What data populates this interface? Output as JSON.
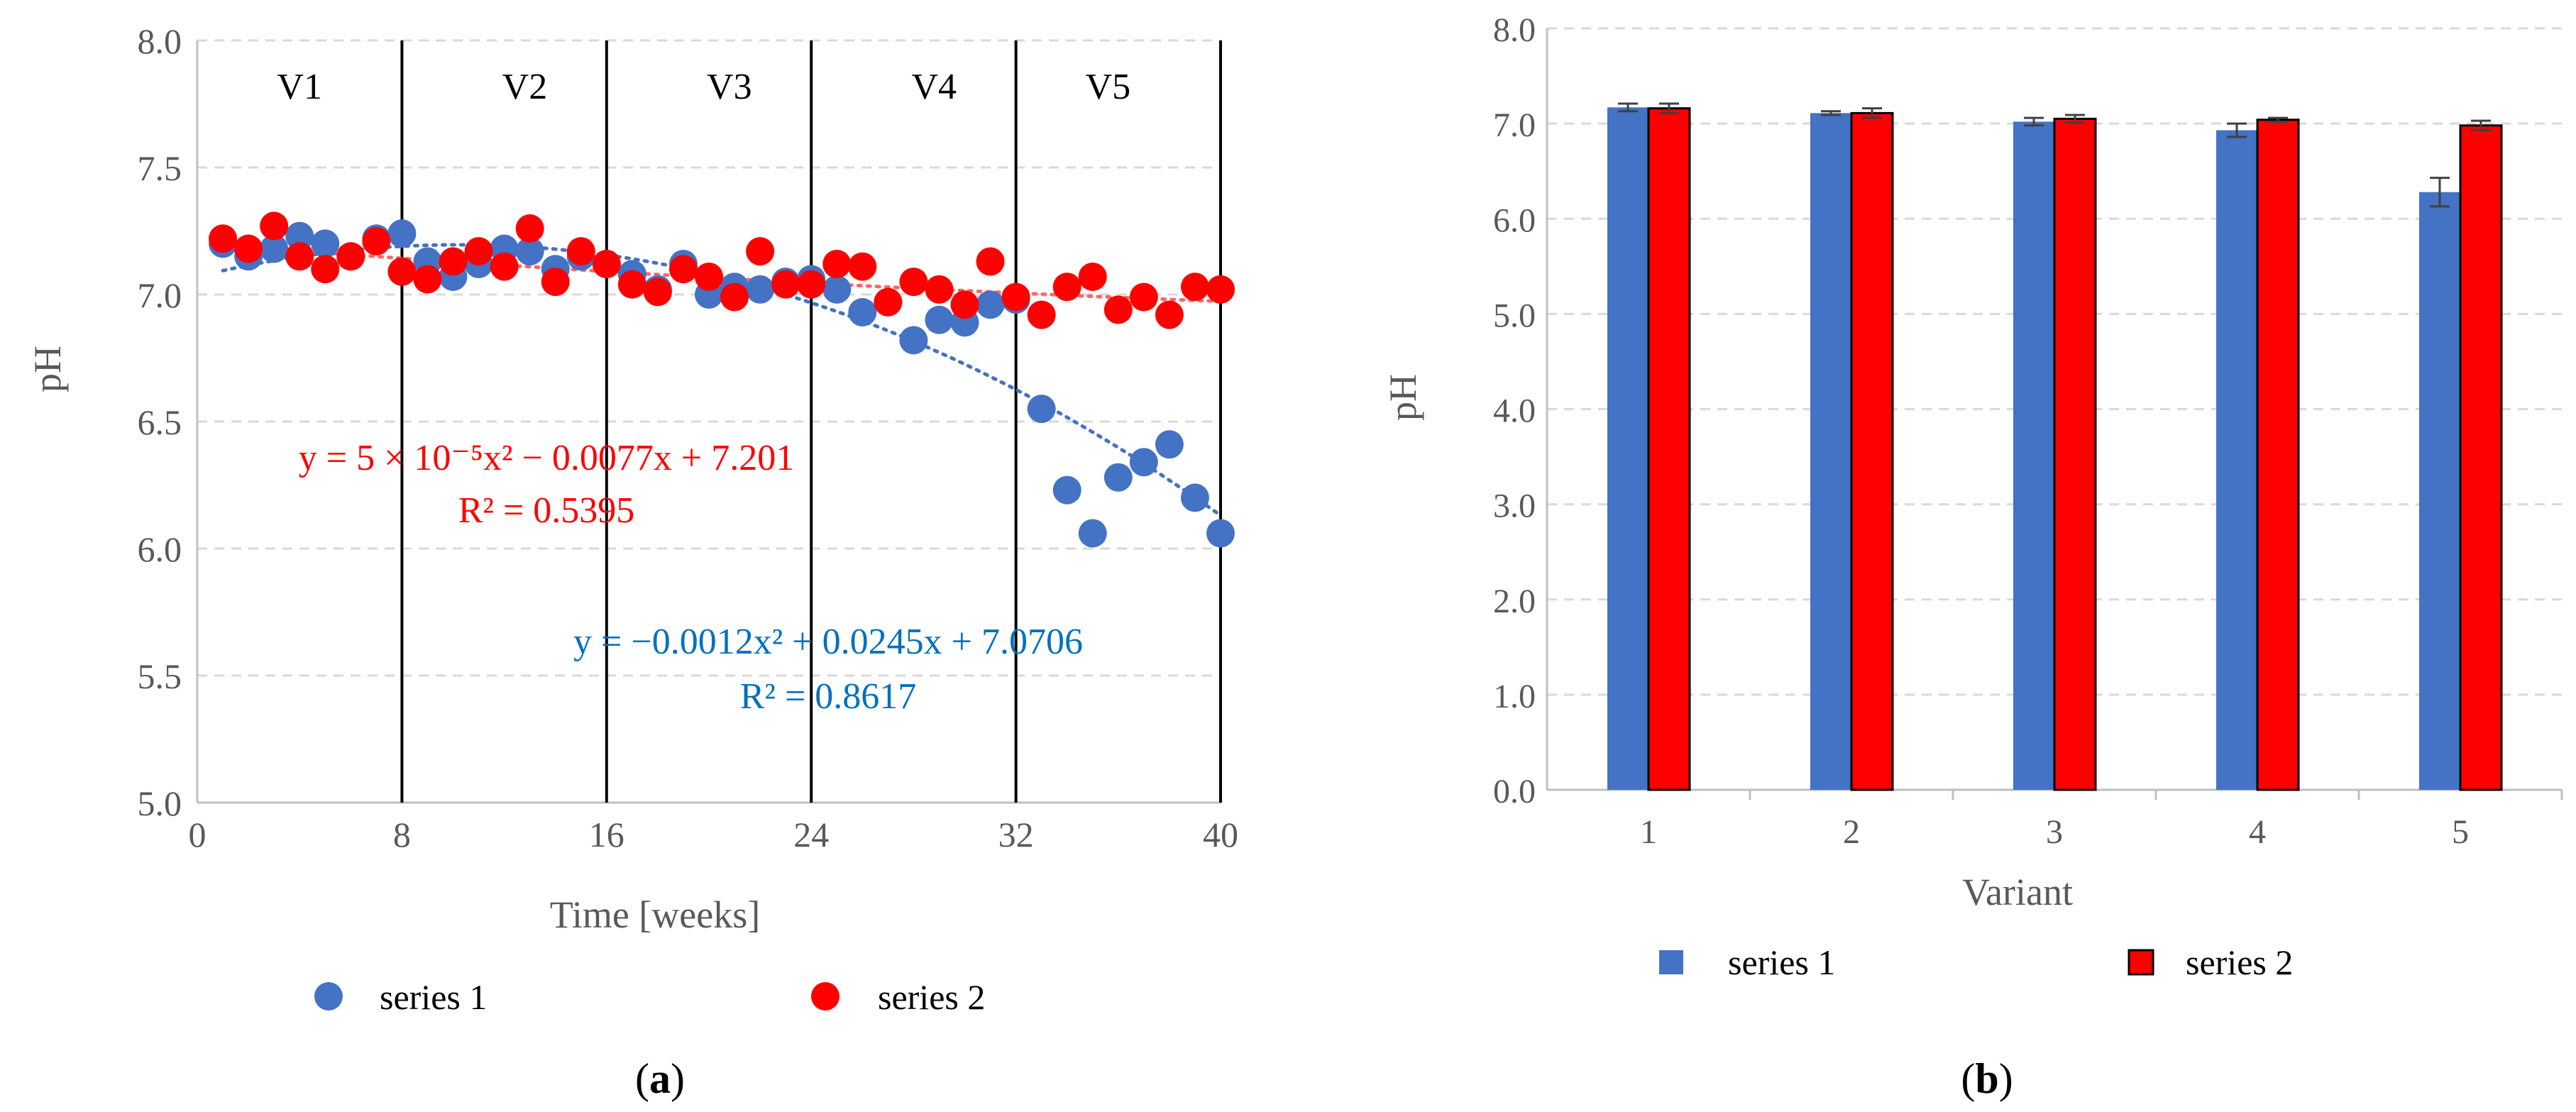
{
  "colors": {
    "series1": "#4472C4",
    "series2": "#FF0000",
    "trend1": "#4472C4",
    "trend2": "#FF6666",
    "eq1": "#0070C0",
    "eq2": "#FF0000",
    "axis_text": "#595959",
    "grid": "#D9D9D9"
  },
  "chart_data": [
    {
      "type": "scatter",
      "panel_label": "a",
      "xlabel": "Time [weeks]",
      "ylabel": "pH",
      "xlim": [
        0,
        40
      ],
      "ylim": [
        5.0,
        8.0
      ],
      "x_ticks": [
        0,
        8,
        16,
        24,
        32,
        40
      ],
      "x_tick_labels": [
        "0",
        "8",
        "16",
        "24",
        "32",
        "40"
      ],
      "y_ticks": [
        5.0,
        5.5,
        6.0,
        6.5,
        7.0,
        7.5,
        8.0
      ],
      "y_tick_labels": [
        "5.0",
        "5.5",
        "6.0",
        "6.5",
        "7.0",
        "7.5",
        "8.0"
      ],
      "grid": "horizontal dashed",
      "legend_position": "bottom",
      "legend": [
        "series 1",
        "series 2"
      ],
      "vertical_dividers": [
        8,
        16,
        24,
        32,
        40
      ],
      "phase_labels": [
        {
          "text": "V1",
          "x": 4
        },
        {
          "text": "V2",
          "x": 12.8
        },
        {
          "text": "V3",
          "x": 20.8
        },
        {
          "text": "V4",
          "x": 28.8
        },
        {
          "text": "V5",
          "x": 35.6
        }
      ],
      "series": [
        {
          "name": "series 1",
          "x": [
            1,
            2,
            3,
            4,
            5,
            6,
            7,
            8,
            9,
            10,
            11,
            12,
            13,
            14,
            15,
            16,
            17,
            18,
            19,
            20,
            21,
            22,
            23,
            24,
            25,
            26,
            27,
            28,
            29,
            30,
            31,
            32,
            33,
            34,
            35,
            36,
            37,
            38,
            39,
            40
          ],
          "y": [
            7.2,
            7.15,
            7.18,
            7.23,
            7.2,
            7.15,
            7.22,
            7.24,
            7.13,
            7.07,
            7.12,
            7.18,
            7.17,
            7.1,
            7.15,
            7.12,
            7.08,
            7.02,
            7.12,
            7.0,
            7.03,
            7.02,
            7.05,
            7.06,
            7.02,
            6.93,
            6.97,
            6.82,
            6.9,
            6.89,
            6.96,
            6.98,
            6.55,
            6.23,
            6.06,
            6.28,
            6.34,
            6.41,
            6.2,
            6.06
          ],
          "trendline": {
            "type": "poly2",
            "a": -0.0012,
            "b": 0.0245,
            "c": 7.0706,
            "x_range": [
              1,
              40
            ]
          },
          "equation": "y = −0.0012x² + 0.0245x + 7.0706",
          "r_squared": "R² = 0.8617"
        },
        {
          "name": "series 2",
          "x": [
            1,
            2,
            3,
            4,
            5,
            6,
            7,
            8,
            9,
            10,
            11,
            12,
            13,
            14,
            15,
            16,
            17,
            18,
            19,
            20,
            21,
            22,
            23,
            24,
            25,
            26,
            27,
            28,
            29,
            30,
            31,
            32,
            33,
            34,
            35,
            36,
            37,
            38,
            39,
            40
          ],
          "y": [
            7.22,
            7.18,
            7.27,
            7.15,
            7.1,
            7.15,
            7.21,
            7.09,
            7.06,
            7.13,
            7.17,
            7.11,
            7.26,
            7.05,
            7.17,
            7.12,
            7.04,
            7.01,
            7.1,
            7.07,
            6.99,
            7.17,
            7.04,
            7.04,
            7.12,
            7.11,
            6.97,
            7.05,
            7.02,
            6.96,
            7.13,
            6.99,
            6.92,
            7.03,
            7.07,
            6.94,
            6.99,
            6.92,
            7.03,
            7.02
          ],
          "trendline": {
            "type": "poly2",
            "a": 5e-05,
            "b": -0.0077,
            "c": 7.201,
            "x_range": [
              1,
              40
            ]
          },
          "equation": "y = 5 × 10⁻⁵x² − 0.0077x + 7.201",
          "r_squared": "R² = 0.5395"
        }
      ]
    },
    {
      "type": "bar",
      "panel_label": "b",
      "xlabel": "Variant",
      "ylabel": "pH",
      "ylim": [
        0.0,
        8.0
      ],
      "y_ticks": [
        0.0,
        1.0,
        2.0,
        3.0,
        4.0,
        5.0,
        6.0,
        7.0,
        8.0
      ],
      "y_tick_labels": [
        "0.0",
        "1.0",
        "2.0",
        "3.0",
        "4.0",
        "5.0",
        "6.0",
        "7.0",
        "8.0"
      ],
      "categories": [
        "1",
        "2",
        "3",
        "4",
        "5"
      ],
      "grid": "horizontal dashed",
      "legend_position": "bottom",
      "legend": [
        "series 1",
        "series 2"
      ],
      "series": [
        {
          "name": "series 1",
          "values": [
            7.17,
            7.11,
            7.02,
            6.93,
            6.28
          ],
          "errors": [
            0.04,
            0.02,
            0.04,
            0.07,
            0.15
          ]
        },
        {
          "name": "series 2",
          "values": [
            7.16,
            7.11,
            7.05,
            7.04,
            6.98
          ],
          "errors": [
            0.05,
            0.05,
            0.04,
            0.02,
            0.05
          ]
        }
      ]
    }
  ]
}
